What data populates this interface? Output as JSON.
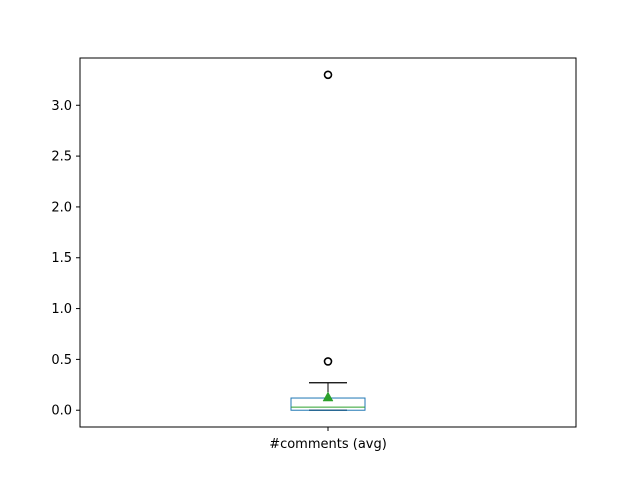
{
  "chart_data": {
    "type": "box",
    "categories": [
      "#comments (avg)"
    ],
    "ylim": [
      -0.165,
      3.465
    ],
    "yticks": [
      0.0,
      0.5,
      1.0,
      1.5,
      2.0,
      2.5,
      3.0
    ],
    "ytick_labels": [
      "0.0",
      "0.5",
      "1.0",
      "1.5",
      "2.0",
      "2.5",
      "3.0"
    ],
    "grid": false,
    "boxes": [
      {
        "name": "#comments (avg)",
        "whisker_low": 0.0,
        "q1": 0.0,
        "median": 0.03,
        "q3": 0.12,
        "whisker_high": 0.27,
        "mean": 0.13,
        "outliers": [
          0.48,
          3.3
        ]
      }
    ],
    "colors": {
      "box": "#1f77b4",
      "median": "#2ca02c",
      "mean_marker": "#2ca02c",
      "whisker": "#000000",
      "outlier": "#000000"
    }
  }
}
